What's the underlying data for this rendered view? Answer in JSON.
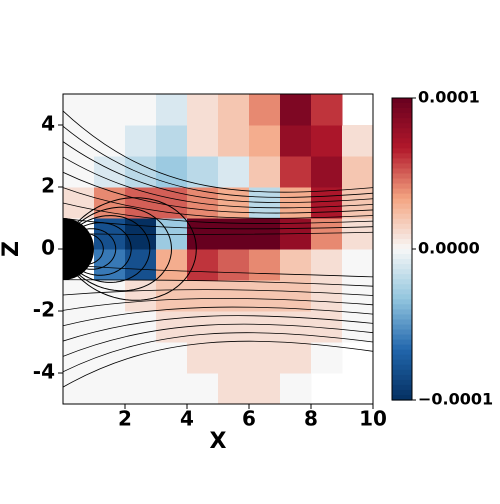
{
  "chart_data": {
    "type": "heatmap",
    "xlabel": "X",
    "ylabel": "Z",
    "xbins": [
      0,
      1,
      2,
      3,
      4,
      5,
      6,
      7,
      8,
      9,
      10
    ],
    "ybins": [
      -5,
      -4,
      -3,
      -2,
      -1,
      0,
      1,
      2,
      3,
      4,
      5
    ],
    "values": [
      [
        0,
        0,
        0,
        0,
        0,
        1e-05,
        1e-05,
        0,
        null,
        null
      ],
      [
        0,
        0,
        0,
        0,
        1e-05,
        1e-05,
        1e-05,
        1e-05,
        0,
        null
      ],
      [
        0,
        0,
        0,
        1e-05,
        1e-05,
        1e-05,
        1e-05,
        1e-05,
        1e-05,
        0
      ],
      [
        0,
        0,
        1e-05,
        2e-05,
        2e-05,
        2e-05,
        2e-05,
        2e-05,
        1e-05,
        0
      ],
      [
        null,
        -6e-05,
        -8e-05,
        3e-05,
        6e-05,
        5e-05,
        4e-05,
        2e-05,
        1e-05,
        0
      ],
      [
        null,
        -8e-05,
        -0.0001,
        -3e-05,
        0.0001,
        0.0001,
        0.0001,
        8e-05,
        4e-05,
        1e-05
      ],
      [
        1e-05,
        4e-05,
        5e-05,
        5e-05,
        4e-05,
        3e-05,
        -2e-05,
        3e-05,
        7e-05,
        2e-05
      ],
      [
        0,
        -1e-05,
        -2e-05,
        -3e-05,
        -2e-05,
        -1e-05,
        2e-05,
        6e-05,
        8e-05,
        2e-05
      ],
      [
        0,
        0,
        -1e-05,
        -2e-05,
        1e-05,
        2e-05,
        3e-05,
        8e-05,
        7e-05,
        1e-05
      ],
      [
        0,
        0,
        0,
        -1e-05,
        1e-05,
        2e-05,
        4e-05,
        9e-05,
        6e-05,
        null
      ]
    ],
    "xlim": [
      0,
      10
    ],
    "ylim": [
      -5,
      5
    ],
    "xticks": [
      2,
      4,
      6,
      8,
      10
    ],
    "yticks": [
      -4,
      -2,
      0,
      2,
      4
    ],
    "clim": [
      -0.0001,
      0.0001
    ],
    "cticks": [
      {
        "value": -0.0001,
        "label": "−0.0001"
      },
      {
        "value": 0,
        "label": "0.0000"
      },
      {
        "value": 0.0001,
        "label": "0.0001"
      }
    ],
    "colormap": [
      "#053061",
      "#2166ac",
      "#92c5de",
      "#f7f7f7",
      "#f4a582",
      "#b2182b",
      "#67001f"
    ]
  }
}
